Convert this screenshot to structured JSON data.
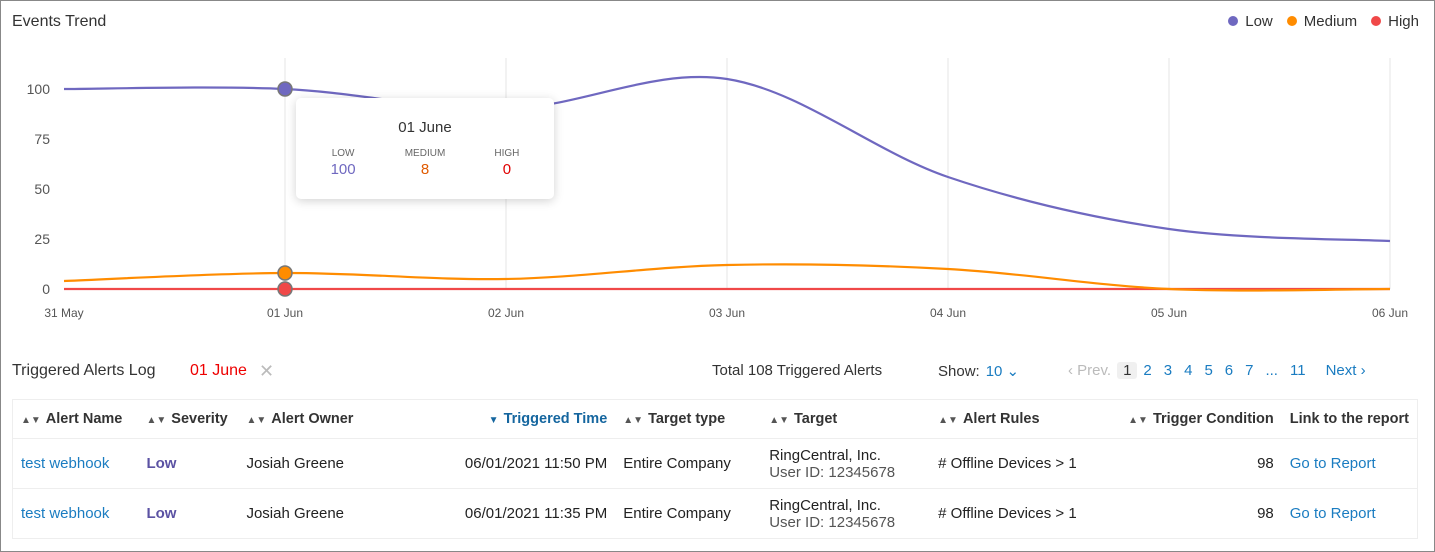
{
  "header": {
    "title": "Events Trend",
    "legend": [
      {
        "label": "Low",
        "color": "#6f68c0"
      },
      {
        "label": "Medium",
        "color": "#ff8c00"
      },
      {
        "label": "High",
        "color": "#f04848"
      }
    ]
  },
  "chart_data": {
    "type": "line",
    "x": [
      "31 May",
      "01 Jun",
      "02 Jun",
      "03 Jun",
      "04 Jun",
      "05 Jun",
      "06 Jun"
    ],
    "yticks": [
      0,
      25,
      50,
      75,
      100
    ],
    "ylim": [
      0,
      110
    ],
    "grid": "vertical",
    "series": [
      {
        "name": "Low",
        "color": "#6f68c0",
        "values": [
          100,
          100,
          90,
          105,
          56,
          30,
          24
        ]
      },
      {
        "name": "Medium",
        "color": "#ff8c00",
        "values": [
          4,
          8,
          5,
          12,
          10,
          0,
          0
        ]
      },
      {
        "name": "High",
        "color": "#f04848",
        "values": [
          0,
          0,
          0,
          0,
          0,
          0,
          0
        ]
      }
    ]
  },
  "tooltip": {
    "date": "01 June",
    "items": [
      {
        "label": "LOW",
        "value": "100",
        "color": "#6f68c0"
      },
      {
        "label": "MEDIUM",
        "value": "8",
        "color": "#e05a00"
      },
      {
        "label": "HIGH",
        "value": "0",
        "color": "#e00000"
      }
    ]
  },
  "log": {
    "title": "Triggered Alerts Log",
    "filter": "01 June",
    "clear": "✕",
    "total": "Total 108 Triggered Alerts",
    "show_label": "Show:",
    "show_value": "10 ⌄",
    "pager": {
      "prev": "‹ Prev.",
      "pages": [
        "1",
        "2",
        "3",
        "4",
        "5",
        "6",
        "7",
        "...",
        "11"
      ],
      "next": "Next ›"
    }
  },
  "table": {
    "columns": [
      "Alert Name",
      "Severity",
      "Alert Owner",
      "Triggered Time",
      "Target type",
      "Target",
      "Alert Rules",
      "Trigger Condition",
      "Link to the report"
    ],
    "rows": [
      {
        "name": "test webhook",
        "severity": "Low",
        "owner": "Josiah Greene",
        "time": "06/01/2021 11:50 PM",
        "type": "Entire Company",
        "target": "RingCentral, Inc.",
        "target_sub": "User ID: 12345678",
        "rule": "# Offline Devices > 1",
        "cond": "98",
        "link": "Go to Report"
      },
      {
        "name": "test webhook",
        "severity": "Low",
        "owner": "Josiah Greene",
        "time": "06/01/2021 11:35 PM",
        "type": "Entire Company",
        "target": "RingCentral, Inc.",
        "target_sub": "User ID: 12345678",
        "rule": "# Offline Devices > 1",
        "cond": "98",
        "link": "Go to Report"
      }
    ]
  }
}
